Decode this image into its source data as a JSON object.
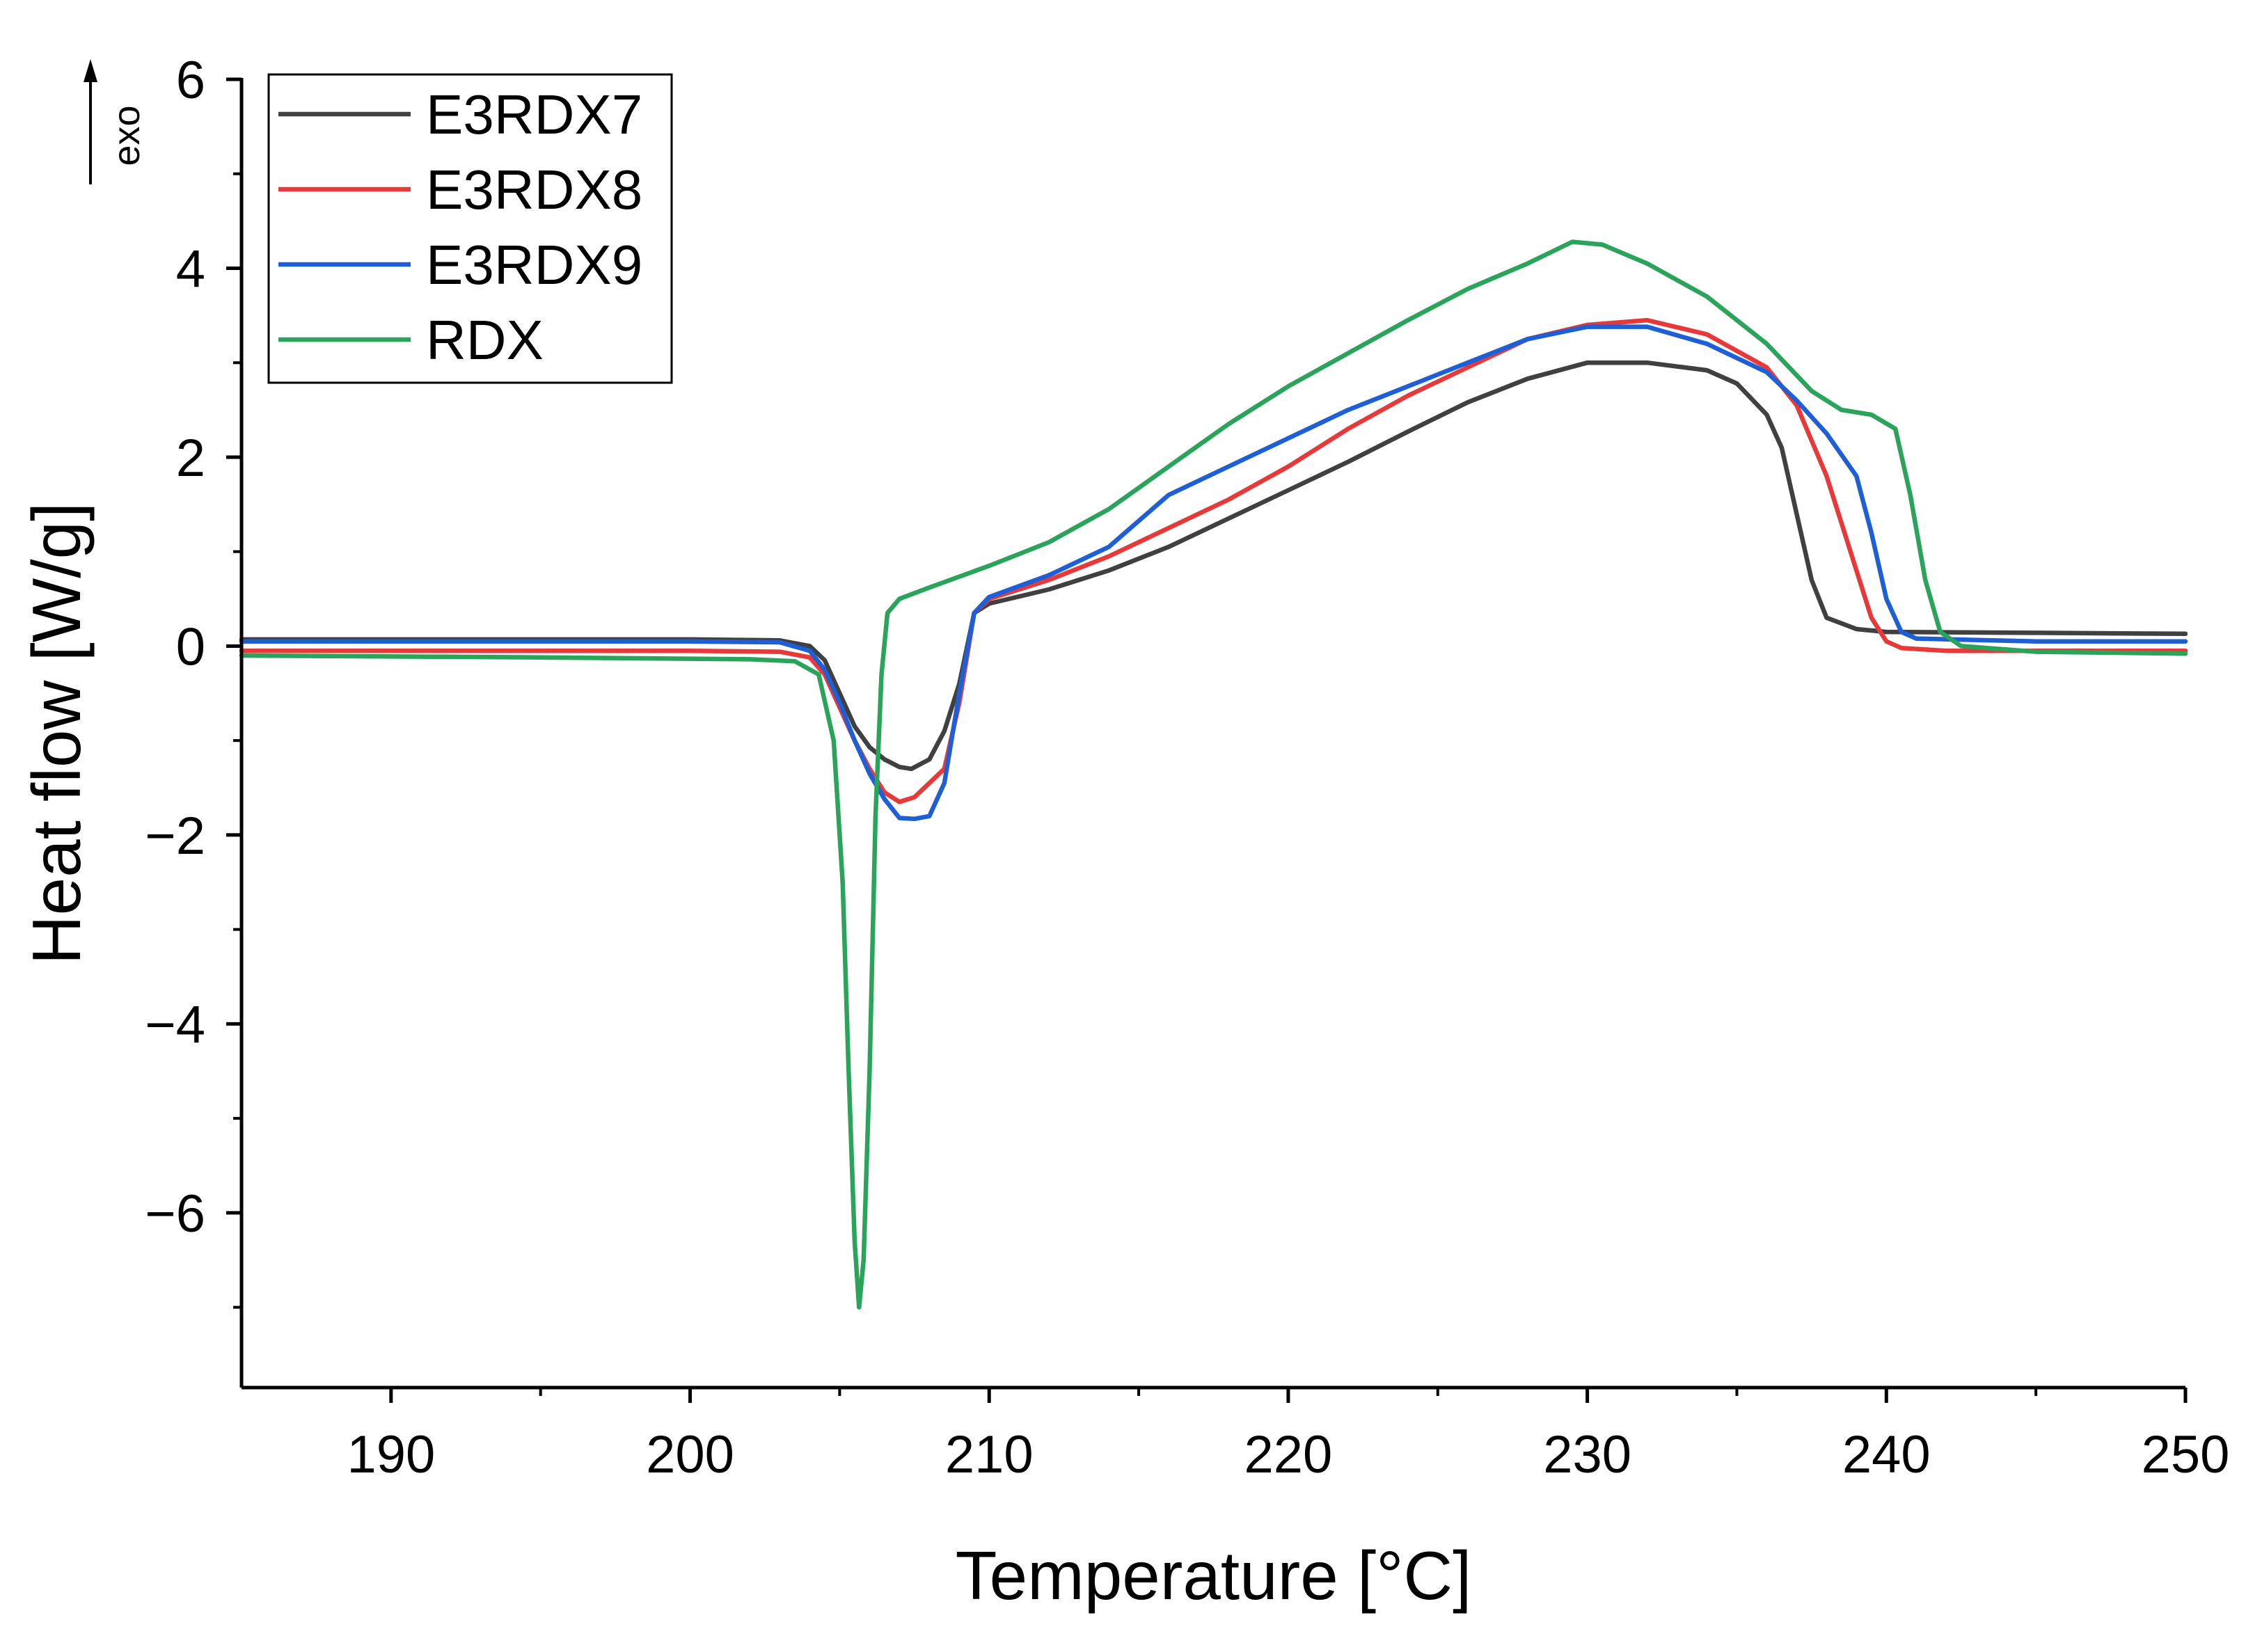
{
  "chart_data": {
    "type": "line",
    "title": "",
    "xlabel": "Temperature [°C]",
    "ylabel": "Heat flow [W/g]",
    "exo_label": "exo",
    "xlim": [
      185,
      250
    ],
    "ylim": [
      -7.85,
      6
    ],
    "xticks": [
      190,
      200,
      210,
      220,
      230,
      240,
      250
    ],
    "xtick_labels": [
      "190",
      "200",
      "210",
      "220",
      "230",
      "240",
      "250"
    ],
    "xminor": [
      195,
      205,
      215,
      225,
      235,
      245
    ],
    "yticks": [
      -6,
      -4,
      -2,
      0,
      2,
      4,
      6
    ],
    "ytick_labels": [
      "−6",
      "−4",
      "−2",
      "0",
      "2",
      "4",
      "6"
    ],
    "yminor": [
      -7,
      -5,
      -3,
      -1,
      1,
      3,
      5
    ],
    "legend_position": "top-left",
    "series": [
      {
        "name": "E3RDX7",
        "color": "#404040",
        "points": [
          [
            185,
            0.07
          ],
          [
            200,
            0.07
          ],
          [
            203,
            0.06
          ],
          [
            204,
            0.0
          ],
          [
            204.5,
            -0.15
          ],
          [
            205,
            -0.5
          ],
          [
            205.5,
            -0.85
          ],
          [
            206,
            -1.07
          ],
          [
            206.5,
            -1.2
          ],
          [
            207,
            -1.28
          ],
          [
            207.4,
            -1.3
          ],
          [
            208,
            -1.2
          ],
          [
            208.5,
            -0.9
          ],
          [
            209,
            -0.4
          ],
          [
            209.5,
            0.35
          ],
          [
            210,
            0.45
          ],
          [
            212,
            0.6
          ],
          [
            214,
            0.8
          ],
          [
            216,
            1.05
          ],
          [
            218,
            1.35
          ],
          [
            220,
            1.65
          ],
          [
            222,
            1.95
          ],
          [
            224,
            2.27
          ],
          [
            226,
            2.58
          ],
          [
            228,
            2.83
          ],
          [
            230,
            3.0
          ],
          [
            232,
            3.0
          ],
          [
            234,
            2.92
          ],
          [
            235,
            2.78
          ],
          [
            236,
            2.45
          ],
          [
            236.5,
            2.1
          ],
          [
            237,
            1.4
          ],
          [
            237.5,
            0.7
          ],
          [
            238,
            0.3
          ],
          [
            239,
            0.18
          ],
          [
            240,
            0.15
          ],
          [
            245,
            0.14
          ],
          [
            250,
            0.13
          ]
        ]
      },
      {
        "name": "E3RDX8",
        "color": "#e8393a",
        "points": [
          [
            185,
            -0.05
          ],
          [
            200,
            -0.05
          ],
          [
            203,
            -0.06
          ],
          [
            204,
            -0.12
          ],
          [
            204.5,
            -0.3
          ],
          [
            205,
            -0.65
          ],
          [
            205.5,
            -1.0
          ],
          [
            206,
            -1.3
          ],
          [
            206.5,
            -1.55
          ],
          [
            207,
            -1.65
          ],
          [
            207.5,
            -1.6
          ],
          [
            208,
            -1.45
          ],
          [
            208.5,
            -1.3
          ],
          [
            209,
            -0.6
          ],
          [
            209.5,
            0.35
          ],
          [
            210,
            0.5
          ],
          [
            212,
            0.7
          ],
          [
            214,
            0.95
          ],
          [
            216,
            1.25
          ],
          [
            218,
            1.55
          ],
          [
            220,
            1.9
          ],
          [
            222,
            2.3
          ],
          [
            224,
            2.65
          ],
          [
            226,
            2.95
          ],
          [
            228,
            3.25
          ],
          [
            230,
            3.4
          ],
          [
            232,
            3.45
          ],
          [
            234,
            3.3
          ],
          [
            236,
            2.95
          ],
          [
            237,
            2.55
          ],
          [
            238,
            1.8
          ],
          [
            238.5,
            1.3
          ],
          [
            239,
            0.8
          ],
          [
            239.5,
            0.3
          ],
          [
            240,
            0.05
          ],
          [
            240.5,
            -0.02
          ],
          [
            242,
            -0.05
          ],
          [
            250,
            -0.05
          ]
        ]
      },
      {
        "name": "E3RDX9",
        "color": "#1f5fd6",
        "points": [
          [
            185,
            0.05
          ],
          [
            200,
            0.05
          ],
          [
            203,
            0.04
          ],
          [
            204,
            -0.05
          ],
          [
            204.5,
            -0.25
          ],
          [
            205,
            -0.6
          ],
          [
            205.5,
            -1.0
          ],
          [
            206,
            -1.35
          ],
          [
            206.5,
            -1.62
          ],
          [
            207,
            -1.82
          ],
          [
            207.5,
            -1.83
          ],
          [
            208,
            -1.8
          ],
          [
            208.5,
            -1.45
          ],
          [
            209,
            -0.5
          ],
          [
            209.5,
            0.35
          ],
          [
            210,
            0.52
          ],
          [
            212,
            0.75
          ],
          [
            214,
            1.05
          ],
          [
            216,
            1.6
          ],
          [
            218,
            1.9
          ],
          [
            220,
            2.2
          ],
          [
            222,
            2.5
          ],
          [
            224,
            2.75
          ],
          [
            226,
            3.0
          ],
          [
            228,
            3.25
          ],
          [
            230,
            3.38
          ],
          [
            232,
            3.38
          ],
          [
            234,
            3.2
          ],
          [
            236,
            2.9
          ],
          [
            237,
            2.6
          ],
          [
            238,
            2.25
          ],
          [
            239,
            1.8
          ],
          [
            239.5,
            1.2
          ],
          [
            240,
            0.5
          ],
          [
            240.5,
            0.15
          ],
          [
            241,
            0.08
          ],
          [
            245,
            0.05
          ],
          [
            250,
            0.05
          ]
        ]
      },
      {
        "name": "RDX",
        "color": "#2aa35b",
        "points": [
          [
            185,
            -0.1
          ],
          [
            195,
            -0.12
          ],
          [
            202,
            -0.14
          ],
          [
            203.5,
            -0.16
          ],
          [
            204.3,
            -0.3
          ],
          [
            204.8,
            -1.0
          ],
          [
            205.1,
            -2.5
          ],
          [
            205.3,
            -4.5
          ],
          [
            205.5,
            -6.3
          ],
          [
            205.65,
            -7.0
          ],
          [
            205.8,
            -6.5
          ],
          [
            206.0,
            -4.5
          ],
          [
            206.2,
            -1.8
          ],
          [
            206.4,
            -0.3
          ],
          [
            206.6,
            0.35
          ],
          [
            207,
            0.5
          ],
          [
            208,
            0.62
          ],
          [
            210,
            0.85
          ],
          [
            212,
            1.1
          ],
          [
            214,
            1.45
          ],
          [
            216,
            1.9
          ],
          [
            218,
            2.35
          ],
          [
            220,
            2.75
          ],
          [
            222,
            3.1
          ],
          [
            224,
            3.45
          ],
          [
            226,
            3.78
          ],
          [
            228,
            4.05
          ],
          [
            229.5,
            4.28
          ],
          [
            230.5,
            4.25
          ],
          [
            232,
            4.05
          ],
          [
            234,
            3.7
          ],
          [
            236,
            3.2
          ],
          [
            237.5,
            2.7
          ],
          [
            238.5,
            2.5
          ],
          [
            239.5,
            2.45
          ],
          [
            240.3,
            2.3
          ],
          [
            240.8,
            1.6
          ],
          [
            241.3,
            0.7
          ],
          [
            241.8,
            0.15
          ],
          [
            242.5,
            0.0
          ],
          [
            245,
            -0.06
          ],
          [
            250,
            -0.08
          ]
        ]
      }
    ]
  }
}
